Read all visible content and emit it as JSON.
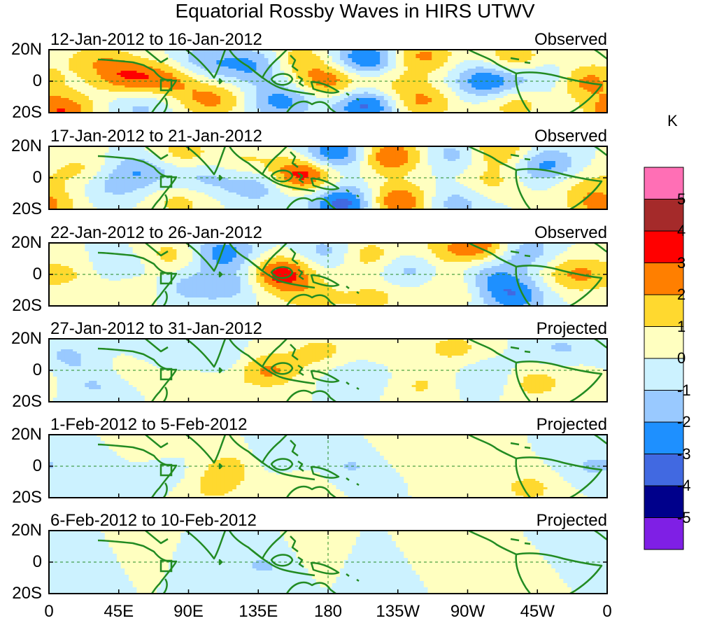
{
  "chart_data": {
    "type": "heatmap",
    "title": "Equatorial Rossby Waves in HIRS UTWV",
    "variable": "HIRS UTWV anomaly",
    "units": "K",
    "x_ticks": [
      "0",
      "45E",
      "90E",
      "135E",
      "180",
      "135W",
      "90W",
      "45W",
      "0"
    ],
    "y_ticks": [
      "20N",
      "0",
      "20S"
    ],
    "lon_range": [
      0,
      360
    ],
    "lat_range": [
      -20,
      20
    ],
    "colorbar": {
      "levels": [
        5,
        4,
        3,
        2,
        1,
        0,
        -1,
        -2,
        -3,
        -4,
        -5
      ],
      "colors": [
        "#ff6fb5",
        "#a52a2a",
        "#ff0000",
        "#ff7f00",
        "#ffd92f",
        "#ffffc0",
        "#ccf2ff",
        "#99c9ff",
        "#1e90ff",
        "#4169e1",
        "#00008b",
        "#7f1fe5"
      ]
    },
    "panels": [
      {
        "dates": "12-Jan-2012 to 16-Jan-2012",
        "status": "Observed",
        "features": [
          {
            "lon": 8,
            "lat": -19,
            "value": 3
          },
          {
            "lon": 30,
            "lat": 14,
            "value": 1.5
          },
          {
            "lon": 50,
            "lat": 3,
            "value": 2.6
          },
          {
            "lon": 78,
            "lat": 1,
            "value": 2.2
          },
          {
            "lon": 60,
            "lat": -16,
            "value": -1.3
          },
          {
            "lon": 100,
            "lat": 12,
            "value": -1.8
          },
          {
            "lon": 105,
            "lat": -12,
            "value": 2.3
          },
          {
            "lon": 132,
            "lat": 10,
            "value": -2.2
          },
          {
            "lon": 150,
            "lat": -12,
            "value": -2.5
          },
          {
            "lon": 160,
            "lat": 14,
            "value": 1.6
          },
          {
            "lon": 180,
            "lat": 0,
            "value": 2.7
          },
          {
            "lon": 205,
            "lat": 14,
            "value": -3.3
          },
          {
            "lon": 205,
            "lat": -15,
            "value": -3.5
          },
          {
            "lon": 218,
            "lat": -2,
            "value": 1.3
          },
          {
            "lon": 240,
            "lat": 16,
            "value": 2.3
          },
          {
            "lon": 240,
            "lat": -13,
            "value": 2.2
          },
          {
            "lon": 283,
            "lat": 0,
            "value": -3.1
          },
          {
            "lon": 300,
            "lat": 14,
            "value": 1.9
          },
          {
            "lon": 300,
            "lat": -14,
            "value": 1.6
          },
          {
            "lon": 322,
            "lat": 2,
            "value": -1.6
          },
          {
            "lon": 345,
            "lat": 0,
            "value": 2.6
          }
        ]
      },
      {
        "dates": "17-Jan-2012 to 21-Jan-2012",
        "status": "Observed",
        "features": [
          {
            "lon": 20,
            "lat": 5,
            "value": 1.3
          },
          {
            "lon": 40,
            "lat": -5,
            "value": -1.2
          },
          {
            "lon": 60,
            "lat": 5,
            "value": -1.9
          },
          {
            "lon": 85,
            "lat": 15,
            "value": 1.6
          },
          {
            "lon": 85,
            "lat": -15,
            "value": 1.4
          },
          {
            "lon": 100,
            "lat": 0,
            "value": -1.4
          },
          {
            "lon": 125,
            "lat": 10,
            "value": 1.2
          },
          {
            "lon": 135,
            "lat": -5,
            "value": -1.8
          },
          {
            "lon": 163,
            "lat": 2,
            "value": 3.7
          },
          {
            "lon": 185,
            "lat": 16,
            "value": -3.3
          },
          {
            "lon": 190,
            "lat": -16,
            "value": -3.6
          },
          {
            "lon": 220,
            "lat": 14,
            "value": 3.1
          },
          {
            "lon": 225,
            "lat": -15,
            "value": 3.2
          },
          {
            "lon": 262,
            "lat": 15,
            "value": -1.6
          },
          {
            "lon": 262,
            "lat": -16,
            "value": -1.6
          },
          {
            "lon": 290,
            "lat": 18,
            "value": 2.3
          },
          {
            "lon": 285,
            "lat": -2,
            "value": 1.3
          },
          {
            "lon": 320,
            "lat": 8,
            "value": -2.4
          },
          {
            "lon": 345,
            "lat": -5,
            "value": 1.1
          },
          {
            "lon": 357,
            "lat": -18,
            "value": 2.2
          }
        ]
      },
      {
        "dates": "22-Jan-2012 to 26-Jan-2012",
        "status": "Observed",
        "features": [
          {
            "lon": 15,
            "lat": 0,
            "value": 1.1
          },
          {
            "lon": 45,
            "lat": 3,
            "value": -1.3
          },
          {
            "lon": 55,
            "lat": -8,
            "value": 1.2
          },
          {
            "lon": 80,
            "lat": 12,
            "value": 1.5
          },
          {
            "lon": 85,
            "lat": -8,
            "value": -1.2
          },
          {
            "lon": 112,
            "lat": 14,
            "value": -2.6
          },
          {
            "lon": 115,
            "lat": -6,
            "value": -1.7
          },
          {
            "lon": 150,
            "lat": 0,
            "value": 3.6
          },
          {
            "lon": 170,
            "lat": -15,
            "value": 1.3
          },
          {
            "lon": 180,
            "lat": 14,
            "value": -1.6
          },
          {
            "lon": 205,
            "lat": 12,
            "value": 1.8
          },
          {
            "lon": 210,
            "lat": -15,
            "value": 1.3
          },
          {
            "lon": 232,
            "lat": 3,
            "value": -1.5
          },
          {
            "lon": 255,
            "lat": 15,
            "value": 1.3
          },
          {
            "lon": 262,
            "lat": -8,
            "value": 1.4
          },
          {
            "lon": 280,
            "lat": 18,
            "value": 2.7
          },
          {
            "lon": 285,
            "lat": -2,
            "value": -2
          },
          {
            "lon": 300,
            "lat": -14,
            "value": -2.6
          },
          {
            "lon": 305,
            "lat": 15,
            "value": -1.9
          },
          {
            "lon": 340,
            "lat": 0,
            "value": 2.2
          }
        ]
      },
      {
        "dates": "27-Jan-2012 to 31-Jan-2012",
        "status": "Projected",
        "features": [
          {
            "lon": 12,
            "lat": 8,
            "value": -1.2
          },
          {
            "lon": 30,
            "lat": -10,
            "value": -1.1
          },
          {
            "lon": 55,
            "lat": 0,
            "value": 0.7
          },
          {
            "lon": 75,
            "lat": 12,
            "value": -1
          },
          {
            "lon": 100,
            "lat": -10,
            "value": 0.8
          },
          {
            "lon": 115,
            "lat": 5,
            "value": -0.9
          },
          {
            "lon": 140,
            "lat": 0,
            "value": 2.3
          },
          {
            "lon": 175,
            "lat": 12,
            "value": 1.3
          },
          {
            "lon": 200,
            "lat": -4,
            "value": -1
          },
          {
            "lon": 220,
            "lat": 14,
            "value": 0.8
          },
          {
            "lon": 240,
            "lat": -10,
            "value": 1.1
          },
          {
            "lon": 262,
            "lat": 14,
            "value": 1.3
          },
          {
            "lon": 285,
            "lat": -5,
            "value": -1.3
          },
          {
            "lon": 310,
            "lat": -8,
            "value": 1.6
          },
          {
            "lon": 330,
            "lat": 14,
            "value": -1.1
          },
          {
            "lon": 350,
            "lat": -5,
            "value": 0.8
          }
        ]
      },
      {
        "dates": "1-Feb-2012 to 5-Feb-2012",
        "status": "Projected",
        "features": [
          {
            "lon": 25,
            "lat": 5,
            "value": -0.8
          },
          {
            "lon": 60,
            "lat": 15,
            "value": 1
          },
          {
            "lon": 75,
            "lat": -5,
            "value": -0.7
          },
          {
            "lon": 105,
            "lat": -14,
            "value": 1.2
          },
          {
            "lon": 118,
            "lat": 0,
            "value": 1.4
          },
          {
            "lon": 145,
            "lat": 5,
            "value": -0.9
          },
          {
            "lon": 165,
            "lat": -10,
            "value": 0.6
          },
          {
            "lon": 195,
            "lat": 0,
            "value": -1.1
          },
          {
            "lon": 230,
            "lat": 10,
            "value": 0.6
          },
          {
            "lon": 270,
            "lat": 0,
            "value": 0.7
          },
          {
            "lon": 310,
            "lat": -14,
            "value": 1.3
          },
          {
            "lon": 350,
            "lat": 0,
            "value": -1.1
          }
        ]
      },
      {
        "dates": "6-Feb-2012 to 10-Feb-2012",
        "status": "Projected",
        "features": [
          {
            "lon": 30,
            "lat": 0,
            "value": -0.6
          },
          {
            "lon": 60,
            "lat": 5,
            "value": 0.7
          },
          {
            "lon": 100,
            "lat": 0,
            "value": -0.8
          },
          {
            "lon": 140,
            "lat": -2,
            "value": -1.1
          },
          {
            "lon": 175,
            "lat": 5,
            "value": 0.6
          },
          {
            "lon": 210,
            "lat": 0,
            "value": -0.6
          },
          {
            "lon": 250,
            "lat": 8,
            "value": 0.7
          },
          {
            "lon": 300,
            "lat": -5,
            "value": 0.8
          },
          {
            "lon": 340,
            "lat": 5,
            "value": -0.6
          }
        ]
      }
    ]
  }
}
